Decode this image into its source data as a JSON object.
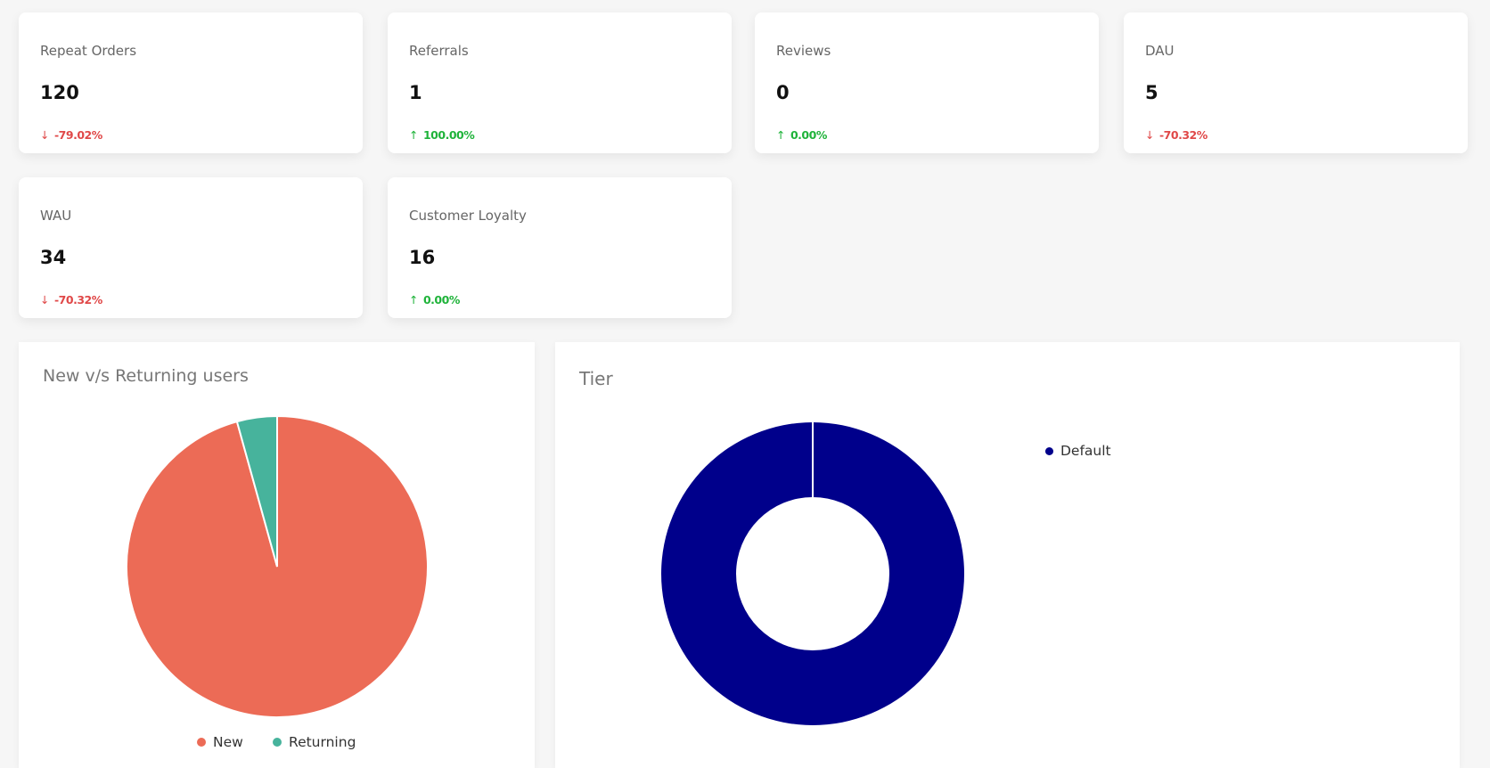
{
  "metrics": [
    {
      "label": "Repeat Orders",
      "value": "120",
      "change": "-79.02%",
      "direction": "down"
    },
    {
      "label": "Referrals",
      "value": "1",
      "change": "100.00%",
      "direction": "up"
    },
    {
      "label": "Reviews",
      "value": "0",
      "change": "0.00%",
      "direction": "up"
    },
    {
      "label": "DAU",
      "value": "5",
      "change": "-70.32%",
      "direction": "down"
    },
    {
      "label": "WAU",
      "value": "34",
      "change": "-70.32%",
      "direction": "down"
    },
    {
      "label": "Customer Loyalty",
      "value": "16",
      "change": "0.00%",
      "direction": "up"
    }
  ],
  "icons": {
    "down": "arrow-down-icon",
    "up": "arrow-up-icon",
    "down_glyph": "↓",
    "up_glyph": "↑"
  },
  "colors": {
    "down": "#e04848",
    "up": "#1fb33a"
  },
  "chart_data": [
    {
      "type": "pie",
      "title": "New v/s Returning users",
      "categories": [
        "New",
        "Returning"
      ],
      "values": [
        95.7,
        4.3
      ],
      "colors": [
        "#ec6b56",
        "#47b39c"
      ],
      "legend": "bottom"
    },
    {
      "type": "donut",
      "title": "Tier",
      "categories": [
        "Default"
      ],
      "values": [
        100
      ],
      "colors": [
        "#00008b"
      ],
      "legend": "top-right"
    }
  ]
}
